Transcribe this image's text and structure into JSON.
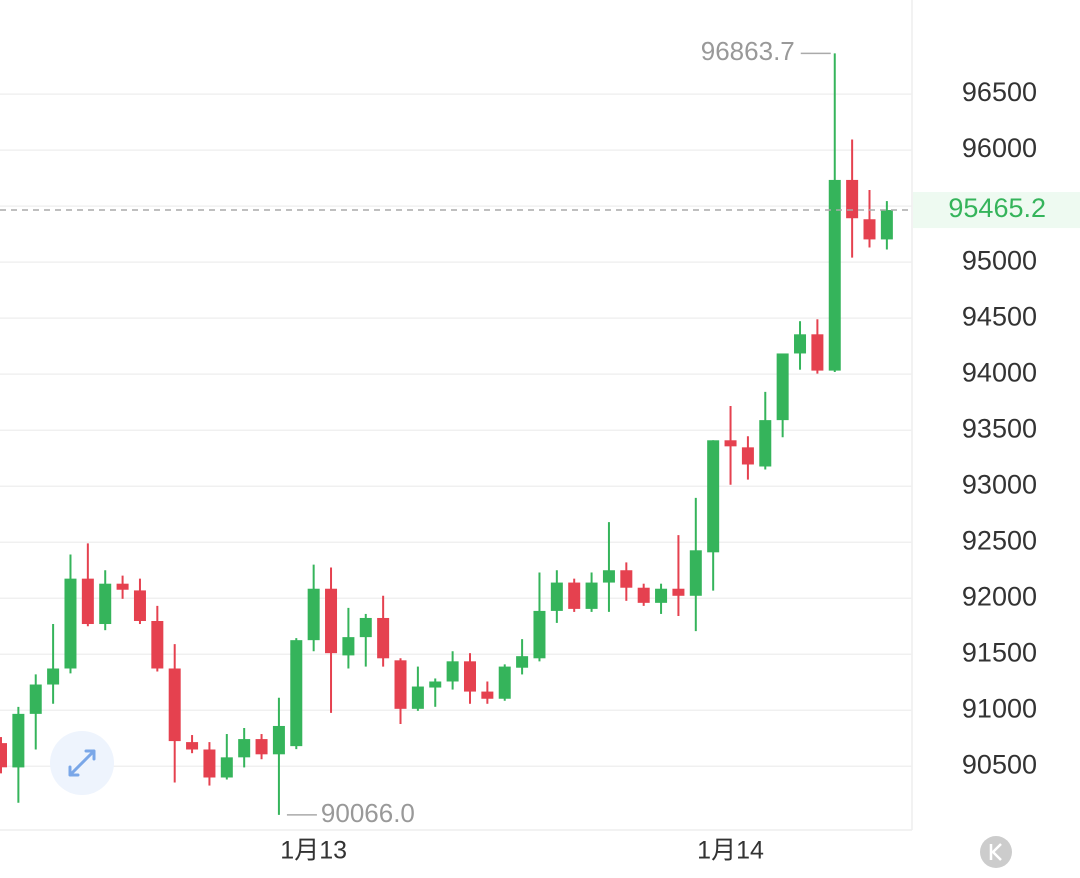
{
  "chart_data": {
    "type": "candlestick",
    "categories": [
      null,
      null,
      null,
      null,
      null,
      null,
      null,
      null,
      null,
      null,
      null,
      null,
      null,
      null,
      null,
      null,
      null,
      null,
      "1月13",
      null,
      null,
      null,
      null,
      null,
      null,
      null,
      null,
      null,
      null,
      null,
      null,
      null,
      null,
      null,
      null,
      null,
      null,
      null,
      null,
      null,
      null,
      null,
      "1月14",
      null,
      null,
      null,
      null,
      null,
      null,
      null,
      null,
      null
    ],
    "open": [
      90707,
      90490,
      90968,
      91230,
      91373,
      92175,
      91770,
      92130,
      92070,
      91797,
      91373,
      90716,
      90650,
      90400,
      90580,
      90743,
      90607,
      90680,
      91626,
      92085,
      91490,
      91653,
      91824,
      91446,
      91013,
      91203,
      91257,
      91437,
      91167,
      91103,
      91380,
      91464,
      91887,
      92140,
      91905,
      92140,
      92250,
      92094,
      91959,
      92085,
      92022,
      92410,
      93410,
      93347,
      93176,
      93590,
      94185,
      94356,
      94032,
      95734,
      95383,
      95203
    ],
    "high": [
      90761,
      91030,
      91320,
      91770,
      92390,
      92490,
      92250,
      92202,
      92175,
      91932,
      91590,
      90779,
      90716,
      90788,
      90842,
      90788,
      91112,
      91644,
      92300,
      92274,
      91914,
      91860,
      92022,
      91464,
      91390,
      91284,
      91527,
      91510,
      91257,
      91410,
      91635,
      92230,
      92250,
      92175,
      92230,
      92680,
      92320,
      92130,
      92130,
      92563,
      92896,
      93410,
      93716,
      93446,
      93842,
      94185,
      94473,
      94490,
      96863.7,
      96095,
      95644,
      95545
    ],
    "low": [
      90437,
      90175,
      90650,
      91058,
      91330,
      91750,
      91715,
      91995,
      91770,
      91346,
      90355,
      90617,
      90328,
      90382,
      90490,
      90563,
      90066,
      90653,
      91527,
      90977,
      91373,
      91390,
      91390,
      90878,
      90995,
      91031,
      91185,
      91058,
      91058,
      91085,
      91320,
      91437,
      91780,
      91878,
      91878,
      91878,
      91977,
      91932,
      91860,
      91842,
      91707,
      92068,
      93013,
      93059,
      93149,
      93437,
      94040,
      94005,
      94020,
      95040,
      95131,
      95113
    ],
    "close": [
      90491,
      90968,
      91230,
      91373,
      92175,
      91770,
      92130,
      92076,
      91797,
      91373,
      90725,
      90650,
      90400,
      90580,
      90743,
      90607,
      90860,
      91626,
      92085,
      91510,
      91653,
      91824,
      91464,
      91013,
      91212,
      91257,
      91437,
      91167,
      91103,
      91390,
      91483,
      91887,
      92140,
      91905,
      92140,
      92250,
      92094,
      91959,
      92085,
      92022,
      92428,
      93410,
      93356,
      93194,
      93590,
      94185,
      94356,
      94032,
      95734,
      95392,
      95203,
      95465.2
    ],
    "up_color": "#35b45b",
    "down_color": "#e5414f",
    "ylim": [
      89860,
      97340
    ],
    "yticks": [
      90500,
      91000,
      91500,
      92000,
      92500,
      93000,
      93500,
      94000,
      94500,
      95000,
      95500,
      96000,
      96500
    ],
    "ytick_labels_shown": [
      90500,
      91000,
      91500,
      92000,
      92500,
      93000,
      93500,
      94000,
      94500,
      95000,
      96000,
      96500
    ],
    "grid": true,
    "last_price": 95465.2,
    "max_label": 96863.7,
    "min_label": {
      "value": 90066,
      "label": "90066.0"
    }
  }
}
